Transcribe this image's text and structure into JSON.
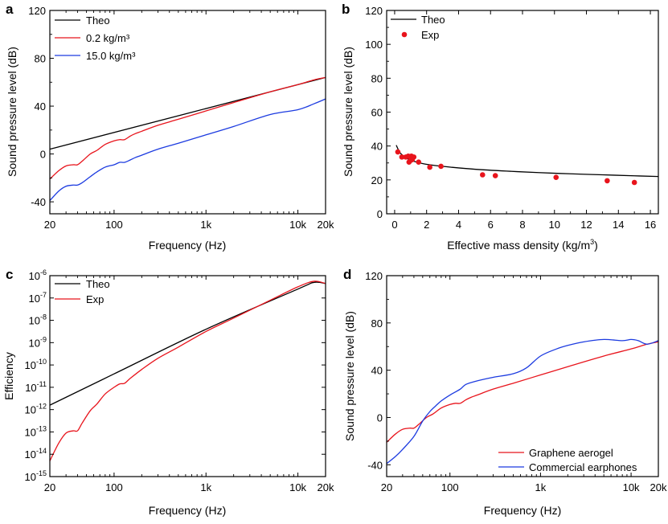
{
  "chart_data": [
    {
      "panel": "a",
      "type": "line",
      "xscale": "log",
      "xlim": [
        20,
        20000
      ],
      "ylim": [
        -50,
        120
      ],
      "xticks": [
        20,
        100,
        1000,
        10000,
        20000
      ],
      "xtick_labels": [
        "20",
        "100",
        "1k",
        "10k",
        "20k"
      ],
      "yticks": [
        -40,
        0,
        40,
        80,
        120
      ],
      "ytick_labels": [
        "-40",
        "0",
        "40",
        "80",
        "120"
      ],
      "xlabel": "Frequency (Hz)",
      "ylabel": "Sound pressure level (dB)",
      "legend_position": "top-left",
      "series": [
        {
          "name": "Theo",
          "color": "#000000",
          "x": [
            20,
            20000
          ],
          "y": [
            4,
            64
          ]
        },
        {
          "name": "0.2 kg/m³",
          "color": "#e8141c",
          "x": [
            20,
            25,
            30,
            36,
            40,
            45,
            55,
            65,
            80,
            100,
            115,
            130,
            150,
            170,
            200,
            300,
            500,
            1000,
            2000,
            5000,
            10000,
            15000,
            20000
          ],
          "y": [
            -21,
            -14,
            -10,
            -9,
            -9,
            -6,
            0,
            3,
            8,
            11,
            12,
            12,
            15,
            17,
            19,
            24,
            29,
            36,
            43,
            52,
            58,
            62,
            64
          ]
        },
        {
          "name": "15.0 kg/m³",
          "color": "#1c3be0",
          "x": [
            20,
            25,
            30,
            36,
            40,
            45,
            55,
            65,
            80,
            100,
            115,
            130,
            150,
            170,
            200,
            300,
            500,
            1000,
            2000,
            5000,
            10000,
            15000,
            20000
          ],
          "y": [
            -39,
            -31,
            -27,
            -26,
            -26,
            -24,
            -19,
            -15,
            -11,
            -9,
            -7,
            -7,
            -5,
            -3,
            -1,
            4,
            9,
            16,
            23,
            33,
            37,
            42,
            46
          ]
        }
      ]
    },
    {
      "panel": "b",
      "type": "scatter",
      "xlim": [
        -0.5,
        16.5
      ],
      "ylim": [
        0,
        120
      ],
      "xticks": [
        0,
        2,
        4,
        6,
        8,
        10,
        12,
        14,
        16
      ],
      "xtick_labels": [
        "0",
        "2",
        "4",
        "6",
        "8",
        "10",
        "12",
        "14",
        "16"
      ],
      "yticks": [
        0,
        20,
        40,
        60,
        80,
        100,
        120
      ],
      "ytick_labels": [
        "0",
        "20",
        "40",
        "60",
        "80",
        "100",
        "120"
      ],
      "xlabel": "Effective mass density (kg/m",
      "xlabel_sup": "3",
      "xlabel_end": ")",
      "ylabel": "Sound pressure level (dB)",
      "legend_position": "top-left",
      "series": [
        {
          "name": "Theo",
          "color": "#000000",
          "kind": "line",
          "x": [
            0.1,
            0.3,
            0.5,
            0.8,
            1.2,
            1.8,
            2.5,
            3.5,
            5,
            7,
            9,
            11,
            13,
            15,
            16.5
          ],
          "y": [
            40.5,
            36.5,
            34.5,
            32.5,
            31,
            29.5,
            28.5,
            27.5,
            26.3,
            25.2,
            24.3,
            23.6,
            23,
            22.4,
            22
          ]
        },
        {
          "name": "Exp",
          "color": "#e8141c",
          "kind": "scatter",
          "x": [
            0.2,
            0.45,
            0.7,
            0.85,
            0.9,
            1.0,
            1.05,
            1.1,
            1.2,
            1.5,
            2.2,
            2.9,
            5.5,
            6.3,
            10.1,
            13.3,
            15
          ],
          "y": [
            36.5,
            33.5,
            33.5,
            34,
            30.5,
            31.5,
            34,
            32,
            33.5,
            30.5,
            27.5,
            28,
            23,
            22.5,
            21.5,
            19.5,
            18.5
          ]
        }
      ]
    },
    {
      "panel": "c",
      "type": "line",
      "xscale": "log",
      "yscale": "log",
      "xlim": [
        20,
        20000
      ],
      "ylim_exponent": [
        -15,
        -6
      ],
      "xticks": [
        20,
        100,
        1000,
        10000,
        20000
      ],
      "xtick_labels": [
        "20",
        "100",
        "1k",
        "10k",
        "20k"
      ],
      "ytick_exponents": [
        -15,
        -14,
        -13,
        -12,
        -11,
        -10,
        -9,
        -8,
        -7,
        -6
      ],
      "ytick_base": "10",
      "xlabel": "Frequency (Hz)",
      "ylabel": "Efficiency",
      "legend_position": "top-left",
      "series": [
        {
          "name": "Theo",
          "color": "#000000",
          "x": [
            20,
            100,
            1000,
            10000,
            15000,
            20000
          ],
          "y_exponent": [
            -11.8,
            -10.4,
            -8.4,
            -6.6,
            -6.3,
            -6.35
          ]
        },
        {
          "name": "Exp",
          "color": "#e8141c",
          "x": [
            20,
            25,
            30,
            36,
            40,
            45,
            55,
            65,
            80,
            100,
            115,
            130,
            150,
            200,
            300,
            500,
            1000,
            2000,
            5000,
            10000,
            15000,
            20000
          ],
          "y_exponent": [
            -14.3,
            -13.5,
            -13.05,
            -12.95,
            -12.95,
            -12.6,
            -12.05,
            -11.75,
            -11.3,
            -11.0,
            -10.85,
            -10.82,
            -10.6,
            -10.2,
            -9.7,
            -9.2,
            -8.5,
            -7.9,
            -7.1,
            -6.5,
            -6.25,
            -6.35
          ]
        }
      ]
    },
    {
      "panel": "d",
      "type": "line",
      "xscale": "log",
      "xlim": [
        20,
        20000
      ],
      "ylim": [
        -50,
        120
      ],
      "xticks": [
        20,
        100,
        1000,
        10000,
        20000
      ],
      "xtick_labels": [
        "20",
        "100",
        "1k",
        "10k",
        "20k"
      ],
      "yticks": [
        -40,
        0,
        40,
        80,
        120
      ],
      "ytick_labels": [
        "-40",
        "0",
        "40",
        "80",
        "120"
      ],
      "xlabel": "Frequency (Hz)",
      "ylabel": "Sound pressure level (dB)",
      "legend_position": "bottom-right",
      "series": [
        {
          "name": "Graphene aerogel",
          "color": "#e8141c",
          "x": [
            20,
            25,
            30,
            36,
            40,
            45,
            55,
            65,
            80,
            100,
            115,
            130,
            150,
            170,
            200,
            300,
            500,
            1000,
            2000,
            5000,
            10000,
            15000,
            20000
          ],
          "y": [
            -21,
            -14,
            -10,
            -9,
            -9,
            -6,
            0,
            3,
            8,
            11,
            12,
            12,
            15,
            17,
            19,
            24,
            29,
            36,
            43,
            52,
            58,
            62,
            64
          ]
        },
        {
          "name": "Commercial earphones",
          "color": "#1c3be0",
          "x": [
            20,
            25,
            30,
            40,
            50,
            60,
            70,
            80,
            100,
            130,
            150,
            200,
            300,
            500,
            700,
            1000,
            1500,
            2000,
            3000,
            5000,
            8000,
            10000,
            12000,
            15000,
            20000
          ],
          "y": [
            -39,
            -33,
            -27,
            -16,
            -3,
            5,
            10,
            14,
            19,
            24,
            28,
            31,
            34,
            37,
            42,
            52,
            58,
            61,
            64,
            66,
            65,
            66,
            65,
            62,
            65
          ]
        }
      ]
    }
  ]
}
